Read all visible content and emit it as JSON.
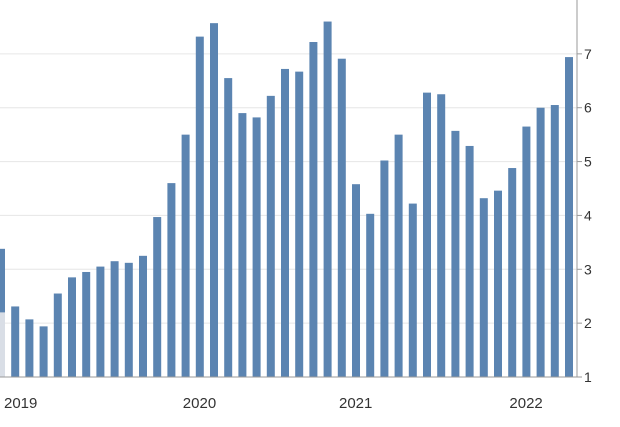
{
  "colors": {
    "bar": "#5b84b1",
    "partial_bar": "#d9dee6",
    "grid": "#e6e6e6",
    "axis": "#9a9a9a",
    "text": "#333333"
  },
  "chart_data": {
    "type": "bar",
    "title": "",
    "xlabel": "",
    "ylabel": "",
    "ylim": [
      1,
      8
    ],
    "y_ticks": [
      "1",
      "2",
      "3",
      "4",
      "5",
      "6",
      "7"
    ],
    "x_tick_labels": [
      "2019",
      "2020",
      "2021",
      "2022"
    ],
    "grid": true,
    "y_axis_side": "right",
    "values": [
      3.38,
      2.31,
      2.07,
      1.94,
      2.55,
      2.85,
      2.95,
      3.05,
      3.15,
      3.12,
      3.25,
      3.97,
      4.6,
      5.5,
      7.32,
      7.57,
      6.55,
      5.9,
      5.82,
      6.22,
      6.72,
      6.67,
      7.22,
      7.6,
      6.91,
      4.58,
      4.03,
      5.02,
      5.5,
      4.22,
      6.28,
      6.25,
      5.57,
      5.29,
      4.32,
      4.46,
      4.88,
      5.65,
      6.0,
      6.05,
      6.94
    ]
  }
}
